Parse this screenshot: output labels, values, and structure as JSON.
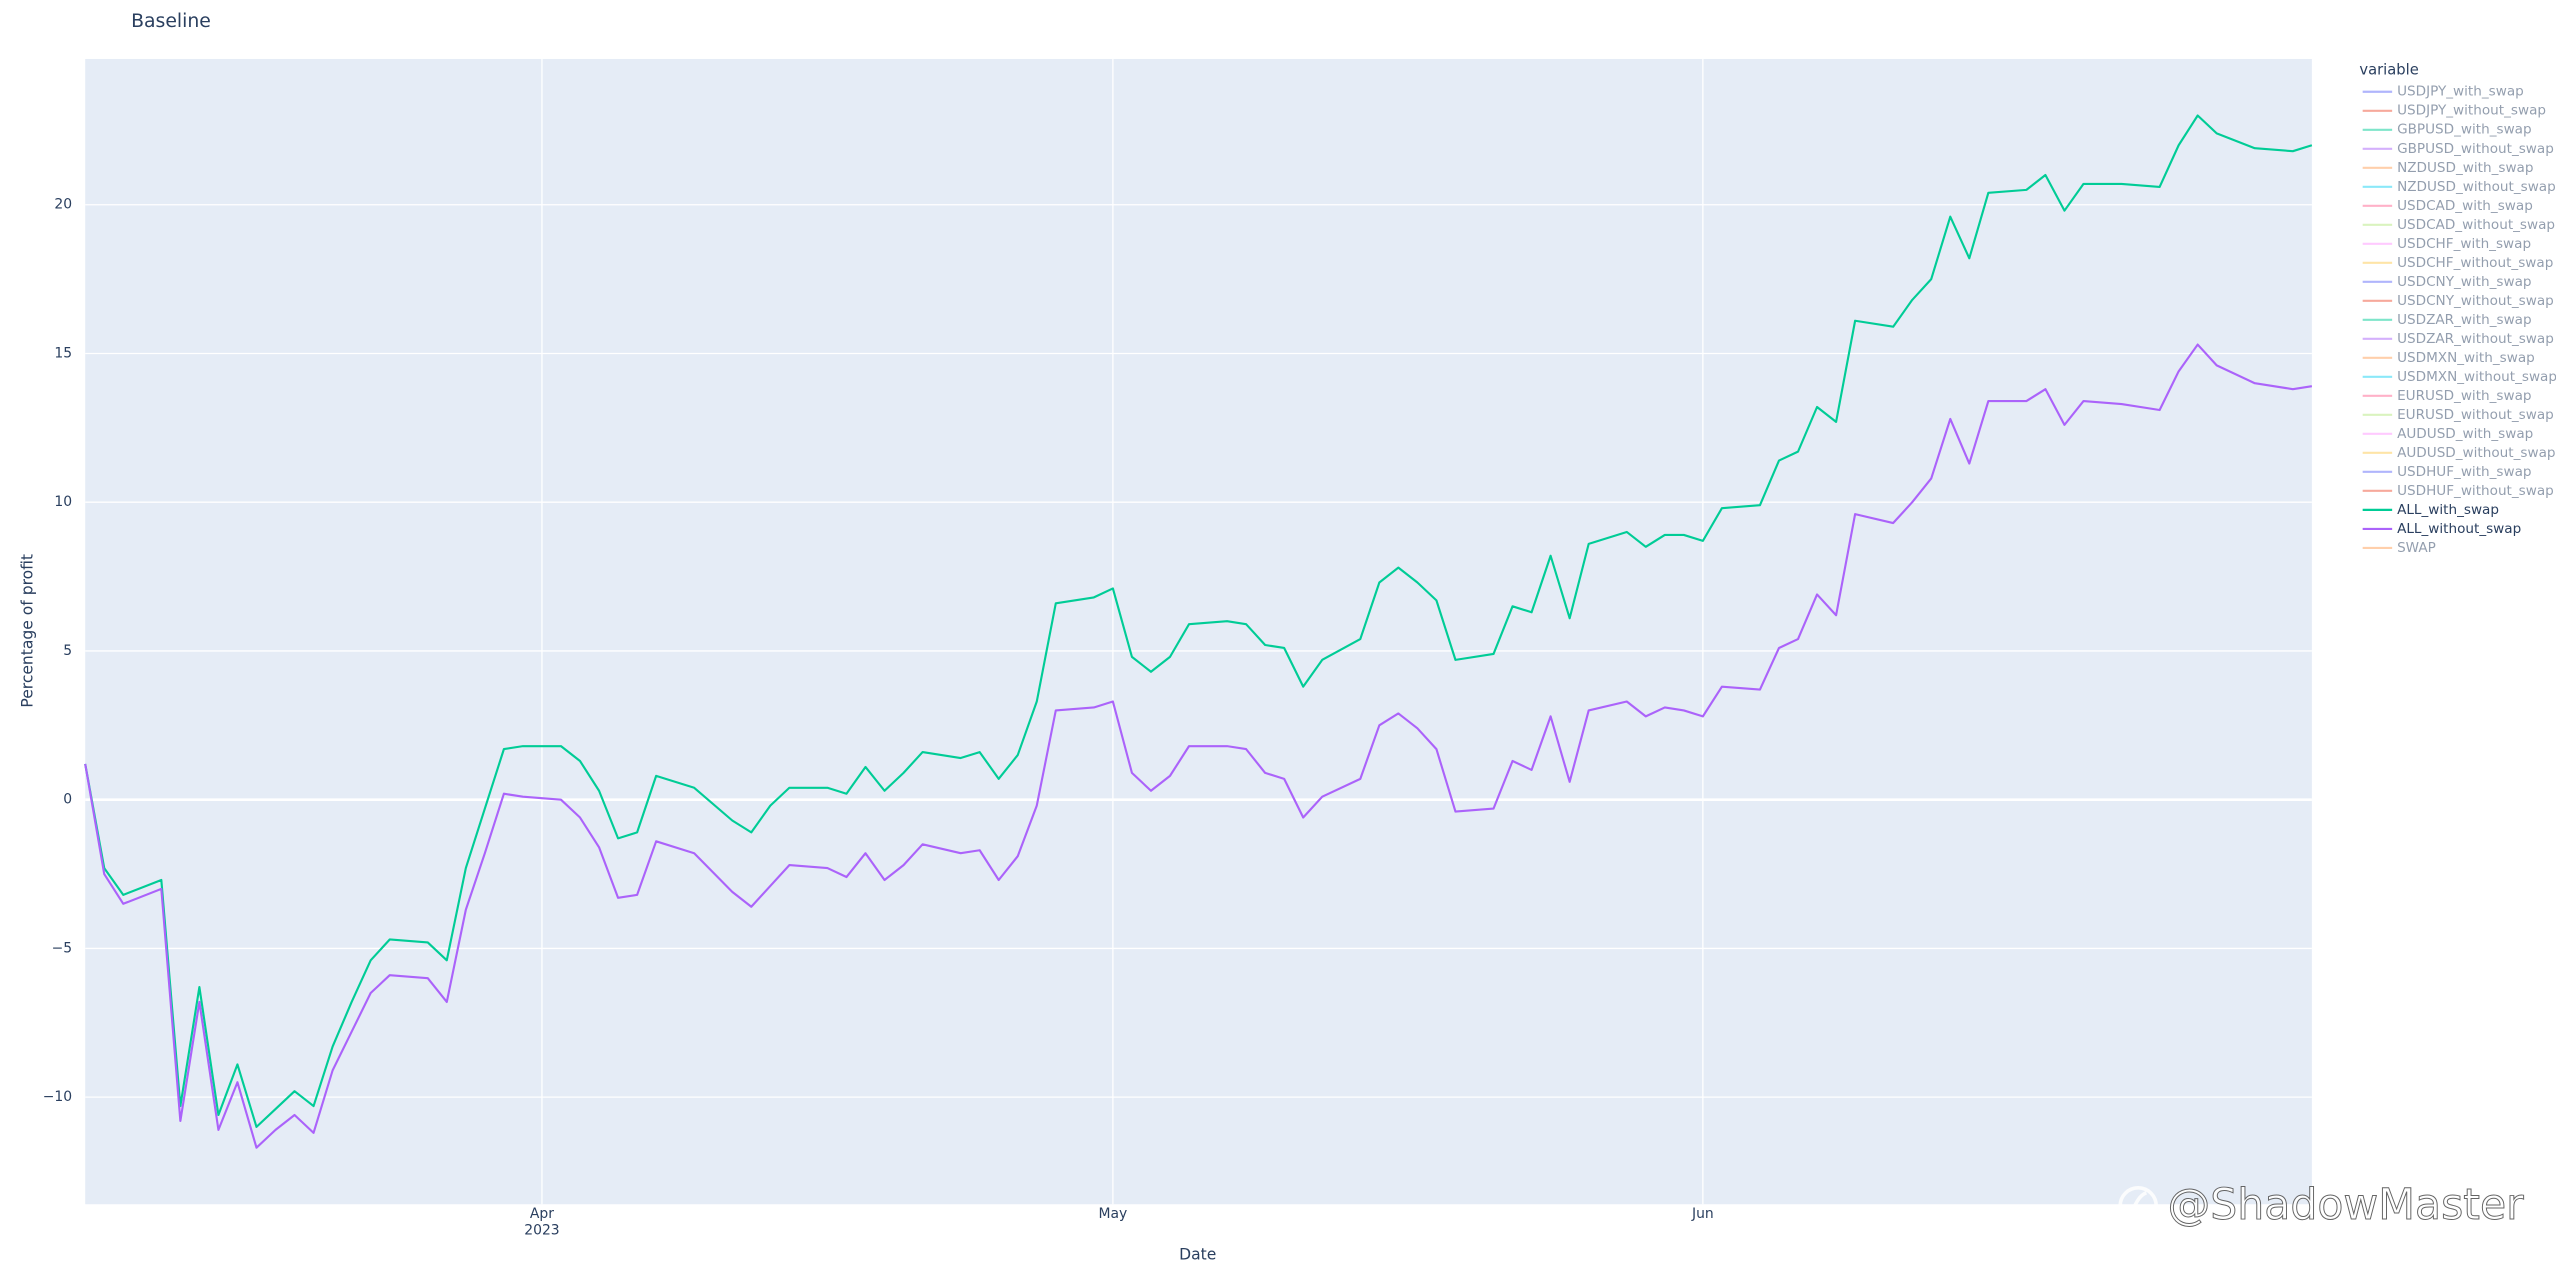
{
  "chart_data": {
    "type": "line",
    "title": "Baseline",
    "x_label": "Date",
    "y_label": "Percentage of profit",
    "legend_title": "variable",
    "legend_position": "right",
    "grid": true,
    "watermark": "@ShadowMaster",
    "xlim": [
      "2023-03-08",
      "2023-07-03"
    ],
    "xticks": [
      {
        "value": "2023-04-01",
        "label": "Apr 2023"
      },
      {
        "value": "2023-05-01",
        "label": "May"
      },
      {
        "value": "2023-06-01",
        "label": "Jun"
      }
    ],
    "ylim": [
      -13.6,
      24.9
    ],
    "yticks": [
      {
        "value": -10,
        "label": "−10"
      },
      {
        "value": -5,
        "label": "−5"
      },
      0,
      5,
      10,
      15,
      20
    ],
    "x": [
      "2023-03-08",
      "2023-03-09",
      "2023-03-10",
      "2023-03-12",
      "2023-03-13",
      "2023-03-14",
      "2023-03-15",
      "2023-03-16",
      "2023-03-17",
      "2023-03-18",
      "2023-03-19",
      "2023-03-20",
      "2023-03-21",
      "2023-03-22",
      "2023-03-23",
      "2023-03-24",
      "2023-03-26",
      "2023-03-27",
      "2023-03-28",
      "2023-03-29",
      "2023-03-30",
      "2023-03-31",
      "2023-04-02",
      "2023-04-03",
      "2023-04-04",
      "2023-04-05",
      "2023-04-06",
      "2023-04-07",
      "2023-04-09",
      "2023-04-11",
      "2023-04-12",
      "2023-04-13",
      "2023-04-14",
      "2023-04-16",
      "2023-04-17",
      "2023-04-18",
      "2023-04-19",
      "2023-04-20",
      "2023-04-21",
      "2023-04-23",
      "2023-04-24",
      "2023-04-25",
      "2023-04-26",
      "2023-04-27",
      "2023-04-28",
      "2023-04-30",
      "2023-05-01",
      "2023-05-02",
      "2023-05-03",
      "2023-05-04",
      "2023-05-05",
      "2023-05-07",
      "2023-05-08",
      "2023-05-09",
      "2023-05-10",
      "2023-05-11",
      "2023-05-12",
      "2023-05-14",
      "2023-05-15",
      "2023-05-16",
      "2023-05-17",
      "2023-05-18",
      "2023-05-19",
      "2023-05-21",
      "2023-05-22",
      "2023-05-23",
      "2023-05-24",
      "2023-05-25",
      "2023-05-26",
      "2023-05-28",
      "2023-05-29",
      "2023-05-30",
      "2023-05-31",
      "2023-06-01",
      "2023-06-02",
      "2023-06-04",
      "2023-06-05",
      "2023-06-06",
      "2023-06-07",
      "2023-06-08",
      "2023-06-09",
      "2023-06-11",
      "2023-06-12",
      "2023-06-13",
      "2023-06-14",
      "2023-06-15",
      "2023-06-16",
      "2023-06-18",
      "2023-06-19",
      "2023-06-20",
      "2023-06-21",
      "2023-06-23",
      "2023-06-25",
      "2023-06-26",
      "2023-06-27",
      "2023-06-28",
      "2023-06-30",
      "2023-07-02",
      "2023-07-03"
    ],
    "series": [
      {
        "name": "USDJPY_with_swap",
        "color": "#636efa",
        "visible": false
      },
      {
        "name": "USDJPY_without_swap",
        "color": "#EF553B",
        "visible": false
      },
      {
        "name": "GBPUSD_with_swap",
        "color": "#00cc96",
        "visible": false
      },
      {
        "name": "GBPUSD_without_swap",
        "color": "#ab63fa",
        "visible": false
      },
      {
        "name": "NZDUSD_with_swap",
        "color": "#FFA15A",
        "visible": false
      },
      {
        "name": "NZDUSD_without_swap",
        "color": "#19d3f3",
        "visible": false
      },
      {
        "name": "USDCAD_with_swap",
        "color": "#FF6692",
        "visible": false
      },
      {
        "name": "USDCAD_without_swap",
        "color": "#B6E880",
        "visible": false
      },
      {
        "name": "USDCHF_with_swap",
        "color": "#FF97FF",
        "visible": false
      },
      {
        "name": "USDCHF_without_swap",
        "color": "#FECB52",
        "visible": false
      },
      {
        "name": "USDCNY_with_swap",
        "color": "#636efa",
        "visible": false
      },
      {
        "name": "USDCNY_without_swap",
        "color": "#EF553B",
        "visible": false
      },
      {
        "name": "USDZAR_with_swap",
        "color": "#00cc96",
        "visible": false
      },
      {
        "name": "USDZAR_without_swap",
        "color": "#ab63fa",
        "visible": false
      },
      {
        "name": "USDMXN_with_swap",
        "color": "#FFA15A",
        "visible": false
      },
      {
        "name": "USDMXN_without_swap",
        "color": "#19d3f3",
        "visible": false
      },
      {
        "name": "EURUSD_with_swap",
        "color": "#FF6692",
        "visible": false
      },
      {
        "name": "EURUSD_without_swap",
        "color": "#B6E880",
        "visible": false
      },
      {
        "name": "AUDUSD_with_swap",
        "color": "#FF97FF",
        "visible": false
      },
      {
        "name": "AUDUSD_without_swap",
        "color": "#FECB52",
        "visible": false
      },
      {
        "name": "USDHUF_with_swap",
        "color": "#636efa",
        "visible": false
      },
      {
        "name": "USDHUF_without_swap",
        "color": "#EF553B",
        "visible": false
      },
      {
        "name": "ALL_with_swap",
        "color": "#00cc96",
        "visible": true,
        "values": [
          1.2,
          -2.3,
          -3.2,
          -2.7,
          -10.3,
          -6.3,
          -10.6,
          -8.9,
          -11.0,
          -10.4,
          -9.8,
          -10.3,
          -8.3,
          -6.8,
          -5.4,
          -4.7,
          -4.8,
          -5.4,
          -2.3,
          -0.3,
          1.7,
          1.8,
          1.8,
          1.3,
          0.3,
          -1.3,
          -1.1,
          0.8,
          0.4,
          -0.7,
          -1.1,
          -0.2,
          0.4,
          0.4,
          0.2,
          1.1,
          0.3,
          0.9,
          1.6,
          1.4,
          1.6,
          0.7,
          1.5,
          3.3,
          6.6,
          6.8,
          7.1,
          4.8,
          4.3,
          4.8,
          5.9,
          6.0,
          5.9,
          5.2,
          5.1,
          3.8,
          4.7,
          5.4,
          7.3,
          7.8,
          7.3,
          6.7,
          4.7,
          4.9,
          6.5,
          6.3,
          8.2,
          6.1,
          8.6,
          9.0,
          8.5,
          8.9,
          8.9,
          8.7,
          9.8,
          9.9,
          11.4,
          11.7,
          13.2,
          12.7,
          16.1,
          15.9,
          16.8,
          17.5,
          19.6,
          18.2,
          20.4,
          20.5,
          21.0,
          19.8,
          20.7,
          20.7,
          20.6,
          22.0,
          23.0,
          22.4,
          21.9,
          21.8,
          22.0
        ]
      },
      {
        "name": "ALL_without_swap",
        "color": "#ab63fa",
        "visible": true,
        "values": [
          1.2,
          -2.5,
          -3.5,
          -3.0,
          -10.8,
          -6.8,
          -11.1,
          -9.5,
          -11.7,
          -11.1,
          -10.6,
          -11.2,
          -9.1,
          -7.8,
          -6.5,
          -5.9,
          -6.0,
          -6.8,
          -3.7,
          -1.8,
          0.2,
          0.1,
          0.0,
          -0.6,
          -1.6,
          -3.3,
          -3.2,
          -1.4,
          -1.8,
          -3.1,
          -3.6,
          -2.9,
          -2.2,
          -2.3,
          -2.6,
          -1.8,
          -2.7,
          -2.2,
          -1.5,
          -1.8,
          -1.7,
          -2.7,
          -1.9,
          -0.2,
          3.0,
          3.1,
          3.3,
          0.9,
          0.3,
          0.8,
          1.8,
          1.8,
          1.7,
          0.9,
          0.7,
          -0.6,
          0.1,
          0.7,
          2.5,
          2.9,
          2.4,
          1.7,
          -0.4,
          -0.3,
          1.3,
          1.0,
          2.8,
          0.6,
          3.0,
          3.3,
          2.8,
          3.1,
          3.0,
          2.8,
          3.8,
          3.7,
          5.1,
          5.4,
          6.9,
          6.2,
          9.6,
          9.3,
          10.0,
          10.8,
          12.8,
          11.3,
          13.4,
          13.4,
          13.8,
          12.6,
          13.4,
          13.3,
          13.1,
          14.4,
          15.3,
          14.6,
          14.0,
          13.8,
          13.9
        ]
      },
      {
        "name": "SWAP",
        "color": "#FFA15A",
        "visible": false
      }
    ]
  }
}
